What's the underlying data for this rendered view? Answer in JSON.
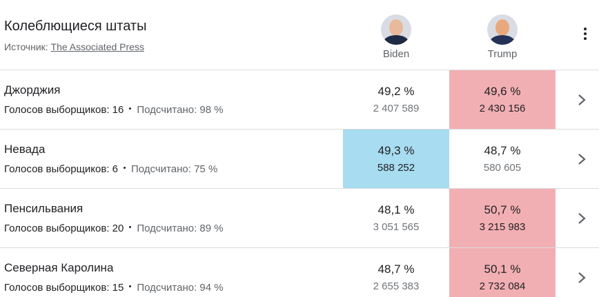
{
  "header": {
    "title": "Колеблющиеся штаты",
    "source_label": "Источник:",
    "source_link": "The Associated Press"
  },
  "candidates": [
    "Biden",
    "Trump"
  ],
  "rows": [
    {
      "state": "Джорджия",
      "electors": "Голосов выборщиков: 16",
      "counted": "Подсчитано: 98 %",
      "leader": 1,
      "results": [
        {
          "percent": "49,2 %",
          "votes": "2 407 589"
        },
        {
          "percent": "49,6 %",
          "votes": "2 430 156"
        }
      ]
    },
    {
      "state": "Невада",
      "electors": "Голосов выборщиков: 6",
      "counted": "Подсчитано: 75 %",
      "leader": 0,
      "results": [
        {
          "percent": "49,3 %",
          "votes": "588 252"
        },
        {
          "percent": "48,7 %",
          "votes": "580 605"
        }
      ]
    },
    {
      "state": "Пенсильвания",
      "electors": "Голосов выборщиков: 20",
      "counted": "Подсчитано: 89 %",
      "leader": 1,
      "results": [
        {
          "percent": "48,1 %",
          "votes": "3 051 565"
        },
        {
          "percent": "50,7 %",
          "votes": "3 215 983"
        }
      ]
    },
    {
      "state": "Северная Каролина",
      "electors": "Голосов выборщиков: 15",
      "counted": "Подсчитано: 94 %",
      "leader": 1,
      "results": [
        {
          "percent": "48,7 %",
          "votes": "2 655 383"
        },
        {
          "percent": "50,1 %",
          "votes": "2 732 084"
        }
      ]
    }
  ]
}
